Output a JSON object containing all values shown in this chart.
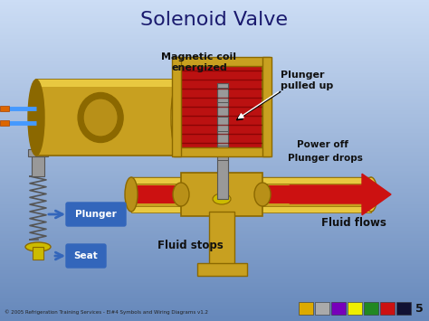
{
  "title": "Solenoid Valve",
  "title_fontsize": 16,
  "title_color": "#1a1a6e",
  "bg_top": "#aabbee",
  "bg_bottom": "#6688cc",
  "labels": {
    "magnetic_coil": "Magnetic coil\nenergized",
    "plunger_up": "Plunger\npulled up",
    "power_off": "Power off",
    "plunger_drops": "Plunger drops",
    "fluid_flows": "Fluid flows",
    "fluid_stops": "Fluid stops",
    "plunger": "Plunger",
    "seat": "Seat"
  },
  "colors": {
    "gold": "#C8A020",
    "gold_dark": "#8B6800",
    "gold_mid": "#B89018",
    "gold_light": "#E8C840",
    "red_coil": "#BB1111",
    "red_flow": "#CC1111",
    "gray_plunger": "#999999",
    "gray_dark": "#555555",
    "gray_light": "#BBBBBB",
    "blue_wire": "#4499FF",
    "blue_arrow_bg": "#3366BB",
    "white": "#FFFFFF",
    "black": "#111111",
    "yellow_seat": "#CCBB00"
  },
  "footer": "© 2005 Refrigeration Training Services - EI#4 Symbols and Wiring Diagrams v1.2",
  "page_number": "5",
  "icon_colors": [
    "#DDAA00",
    "#AAAAAA",
    "#7700BB",
    "#EEEE00",
    "#228822",
    "#CC1111",
    "#111133"
  ]
}
